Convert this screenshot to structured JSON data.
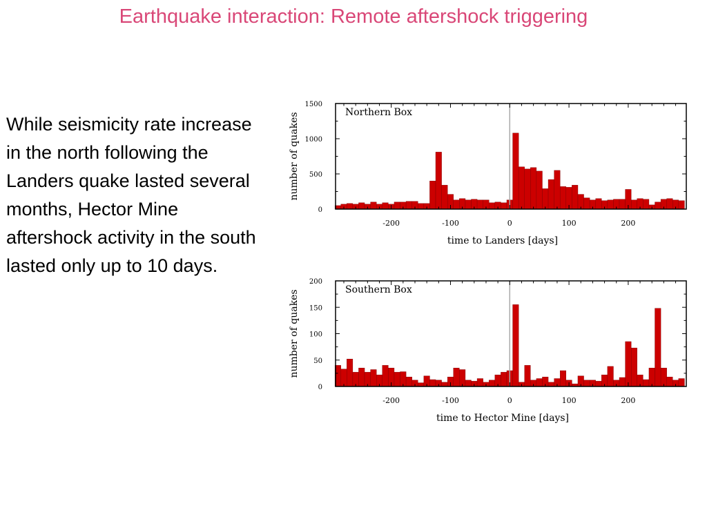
{
  "slide": {
    "title": "Earthquake interaction: Remote aftershock triggering",
    "body": "While seismicity rate increase in the north following the Landers quake lasted several months, Hector Mine aftershock activity in the south lasted only up to 10 days."
  },
  "colors": {
    "title": "#d94777",
    "bar": "#cc0000",
    "mainshock_line": "#aaaaaa"
  },
  "chart_data": [
    {
      "type": "bar",
      "title": "Northern Box",
      "xlabel": "time to  Landers [days]",
      "ylabel": "number of quakes",
      "xlim": [
        -294,
        298
      ],
      "ylim": [
        0,
        1500
      ],
      "xticks": [
        -200,
        -100,
        0,
        100,
        200
      ],
      "yticks": [
        0,
        500,
        1000,
        1500
      ],
      "mainshock_x": 0,
      "bin_width": 10,
      "x": [
        -290,
        -280,
        -270,
        -260,
        -250,
        -240,
        -230,
        -220,
        -210,
        -200,
        -190,
        -180,
        -170,
        -160,
        -150,
        -140,
        -130,
        -120,
        -110,
        -100,
        -90,
        -80,
        -70,
        -60,
        -50,
        -40,
        -30,
        -20,
        -10,
        0,
        10,
        20,
        30,
        40,
        50,
        60,
        70,
        80,
        90,
        100,
        110,
        120,
        130,
        140,
        150,
        160,
        170,
        180,
        190,
        200,
        210,
        220,
        230,
        240,
        250,
        260,
        270,
        280,
        290
      ],
      "values": [
        50,
        70,
        80,
        70,
        90,
        70,
        100,
        70,
        90,
        70,
        100,
        100,
        110,
        110,
        80,
        80,
        400,
        810,
        340,
        210,
        130,
        150,
        130,
        140,
        130,
        130,
        90,
        100,
        90,
        130,
        1080,
        600,
        570,
        590,
        540,
        290,
        420,
        550,
        320,
        310,
        340,
        210,
        160,
        130,
        150,
        120,
        130,
        140,
        140,
        280,
        130,
        150,
        140,
        60,
        100,
        140,
        150,
        130,
        120
      ]
    },
    {
      "type": "bar",
      "title": "Southern Box",
      "xlabel": "time to  Hector Mine [days]",
      "ylabel": "number of quakes",
      "xlim": [
        -294,
        298
      ],
      "ylim": [
        0,
        200
      ],
      "xticks": [
        -200,
        -100,
        0,
        100,
        200
      ],
      "yticks": [
        0,
        50,
        100,
        150,
        200
      ],
      "mainshock_x": 0,
      "bin_width": 10,
      "x": [
        -290,
        -280,
        -270,
        -260,
        -250,
        -240,
        -230,
        -220,
        -210,
        -200,
        -190,
        -180,
        -170,
        -160,
        -150,
        -140,
        -130,
        -120,
        -110,
        -100,
        -90,
        -80,
        -70,
        -60,
        -50,
        -40,
        -30,
        -20,
        -10,
        0,
        10,
        20,
        30,
        40,
        50,
        60,
        70,
        80,
        90,
        100,
        110,
        120,
        130,
        140,
        150,
        160,
        170,
        180,
        190,
        200,
        210,
        220,
        230,
        240,
        250,
        260,
        270,
        280,
        290
      ],
      "values": [
        40,
        33,
        52,
        27,
        35,
        27,
        32,
        22,
        40,
        35,
        27,
        28,
        18,
        12,
        7,
        20,
        13,
        12,
        8,
        18,
        35,
        32,
        12,
        10,
        15,
        8,
        12,
        22,
        27,
        30,
        155,
        8,
        40,
        12,
        15,
        18,
        8,
        15,
        30,
        12,
        5,
        20,
        12,
        12,
        10,
        22,
        38,
        12,
        17,
        85,
        73,
        22,
        13,
        35,
        148,
        35,
        18,
        12,
        15
      ]
    }
  ]
}
